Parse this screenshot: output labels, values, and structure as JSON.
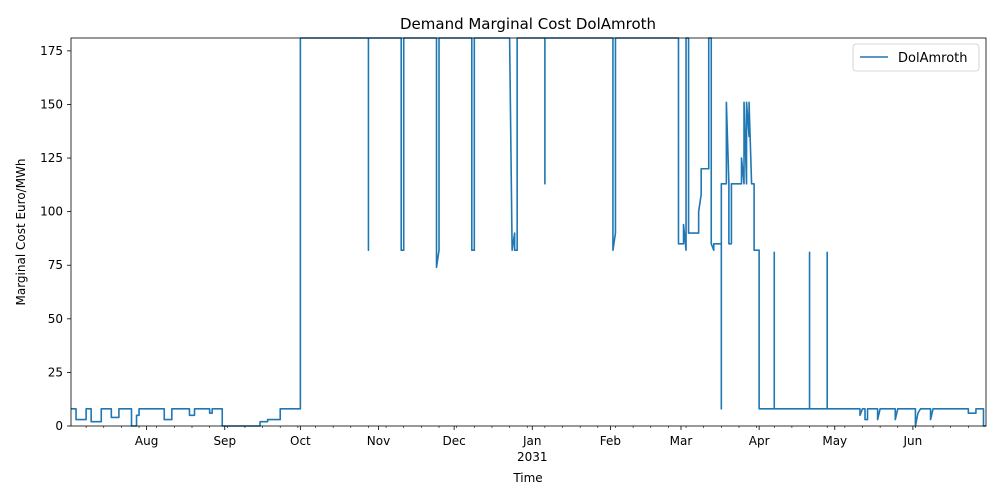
{
  "chart_data": {
    "type": "line",
    "title": "Demand Marginal Cost DolAmroth",
    "xlabel": "Time",
    "ylabel": "Marginal Cost Euro/MWh",
    "ylim": [
      0,
      181
    ],
    "xlim": [
      "2030-07-02",
      "2031-06-30"
    ],
    "grid": false,
    "legend_position": "top-right",
    "y_ticks": [
      0,
      25,
      50,
      75,
      100,
      125,
      150,
      175
    ],
    "x_ticks": [
      {
        "date": "2030-08-01",
        "label": "Aug"
      },
      {
        "date": "2030-09-01",
        "label": "Sep"
      },
      {
        "date": "2030-10-01",
        "label": "Oct"
      },
      {
        "date": "2030-11-01",
        "label": "Nov"
      },
      {
        "date": "2030-12-01",
        "label": "Dec"
      },
      {
        "date": "2031-01-01",
        "label": "Jan"
      },
      {
        "date": "2031-02-01",
        "label": "Feb"
      },
      {
        "date": "2031-03-01",
        "label": "Mar"
      },
      {
        "date": "2031-04-01",
        "label": "Apr"
      },
      {
        "date": "2031-05-01",
        "label": "May"
      },
      {
        "date": "2031-06-01",
        "label": "Jun"
      }
    ],
    "x_year_label": {
      "date": "2031-01-01",
      "label": "2031"
    },
    "series": [
      {
        "name": "DolAmroth",
        "color": "#1f77b4",
        "points": [
          [
            "2030-07-02",
            8
          ],
          [
            "2030-07-04",
            8
          ],
          [
            "2030-07-04",
            3
          ],
          [
            "2030-07-08",
            3
          ],
          [
            "2030-07-08",
            8
          ],
          [
            "2030-07-10",
            8
          ],
          [
            "2030-07-10",
            2
          ],
          [
            "2030-07-14",
            2
          ],
          [
            "2030-07-14",
            8
          ],
          [
            "2030-07-18",
            8
          ],
          [
            "2030-07-18",
            4
          ],
          [
            "2030-07-21",
            4
          ],
          [
            "2030-07-21",
            8
          ],
          [
            "2030-07-26",
            8
          ],
          [
            "2030-07-26",
            0
          ],
          [
            "2030-07-28",
            0
          ],
          [
            "2030-07-28",
            5
          ],
          [
            "2030-07-29",
            5
          ],
          [
            "2030-07-29",
            8
          ],
          [
            "2030-08-08",
            8
          ],
          [
            "2030-08-08",
            3
          ],
          [
            "2030-08-11",
            3
          ],
          [
            "2030-08-11",
            8
          ],
          [
            "2030-08-18",
            8
          ],
          [
            "2030-08-18",
            5
          ],
          [
            "2030-08-20",
            5
          ],
          [
            "2030-08-20",
            8
          ],
          [
            "2030-08-26",
            8
          ],
          [
            "2030-08-26",
            6
          ],
          [
            "2030-08-27",
            6
          ],
          [
            "2030-08-27",
            8
          ],
          [
            "2030-08-31",
            8
          ],
          [
            "2030-08-31",
            0
          ],
          [
            "2030-09-15",
            0
          ],
          [
            "2030-09-15",
            2
          ],
          [
            "2030-09-18",
            2
          ],
          [
            "2030-09-18",
            3
          ],
          [
            "2030-09-23",
            3
          ],
          [
            "2030-09-23",
            8
          ],
          [
            "2030-10-01",
            8
          ],
          [
            "2030-10-01",
            181
          ],
          [
            "2030-10-28",
            181
          ],
          [
            "2030-10-28",
            82
          ],
          [
            "2030-10-28",
            181
          ],
          [
            "2030-11-10",
            181
          ],
          [
            "2030-11-10",
            82
          ],
          [
            "2030-11-11",
            82
          ],
          [
            "2030-11-11",
            181
          ],
          [
            "2030-11-24",
            181
          ],
          [
            "2030-11-24",
            74
          ],
          [
            "2030-11-25",
            82
          ],
          [
            "2030-11-25",
            181
          ],
          [
            "2030-12-08",
            181
          ],
          [
            "2030-12-08",
            82
          ],
          [
            "2030-12-09",
            82
          ],
          [
            "2030-12-09",
            181
          ],
          [
            "2030-12-23",
            181
          ],
          [
            "2030-12-24",
            82
          ],
          [
            "2030-12-25",
            90
          ],
          [
            "2030-12-25",
            82
          ],
          [
            "2030-12-26",
            82
          ],
          [
            "2030-12-26",
            181
          ],
          [
            "2031-01-06",
            181
          ],
          [
            "2031-01-06",
            113
          ],
          [
            "2031-01-06",
            181
          ],
          [
            "2031-02-02",
            181
          ],
          [
            "2031-02-02",
            82
          ],
          [
            "2031-02-03",
            90
          ],
          [
            "2031-02-03",
            181
          ],
          [
            "2031-02-28",
            181
          ],
          [
            "2031-02-28",
            85
          ],
          [
            "2031-03-02",
            85
          ],
          [
            "2031-03-02",
            94
          ],
          [
            "2031-03-03",
            82
          ],
          [
            "2031-03-03",
            181
          ],
          [
            "2031-03-04",
            181
          ],
          [
            "2031-03-04",
            90
          ],
          [
            "2031-03-08",
            90
          ],
          [
            "2031-03-08",
            100
          ],
          [
            "2031-03-09",
            108
          ],
          [
            "2031-03-09",
            120
          ],
          [
            "2031-03-12",
            120
          ],
          [
            "2031-03-12",
            181
          ],
          [
            "2031-03-13",
            181
          ],
          [
            "2031-03-13",
            85
          ],
          [
            "2031-03-14",
            82
          ],
          [
            "2031-03-14",
            85
          ],
          [
            "2031-03-17",
            85
          ],
          [
            "2031-03-17",
            8
          ],
          [
            "2031-03-17",
            113
          ],
          [
            "2031-03-19",
            113
          ],
          [
            "2031-03-19",
            151
          ],
          [
            "2031-03-20",
            113
          ],
          [
            "2031-03-20",
            85
          ],
          [
            "2031-03-21",
            85
          ],
          [
            "2031-03-21",
            113
          ],
          [
            "2031-03-25",
            113
          ],
          [
            "2031-03-25",
            125
          ],
          [
            "2031-03-26",
            113
          ],
          [
            "2031-03-26",
            151
          ],
          [
            "2031-03-27",
            113
          ],
          [
            "2031-03-27",
            151
          ],
          [
            "2031-03-28",
            135
          ],
          [
            "2031-03-28",
            151
          ],
          [
            "2031-03-29",
            113
          ],
          [
            "2031-03-30",
            113
          ],
          [
            "2031-03-30",
            82
          ],
          [
            "2031-04-01",
            82
          ],
          [
            "2031-04-01",
            8
          ],
          [
            "2031-04-07",
            8
          ],
          [
            "2031-04-07",
            81
          ],
          [
            "2031-04-07",
            8
          ],
          [
            "2031-04-21",
            8
          ],
          [
            "2031-04-21",
            81
          ],
          [
            "2031-04-21",
            8
          ],
          [
            "2031-04-28",
            8
          ],
          [
            "2031-04-28",
            81
          ],
          [
            "2031-04-28",
            8
          ],
          [
            "2031-05-11",
            8
          ],
          [
            "2031-05-11",
            5
          ],
          [
            "2031-05-12",
            8
          ],
          [
            "2031-05-13",
            8
          ],
          [
            "2031-05-13",
            3
          ],
          [
            "2031-05-14",
            3
          ],
          [
            "2031-05-14",
            8
          ],
          [
            "2031-05-18",
            8
          ],
          [
            "2031-05-18",
            3
          ],
          [
            "2031-05-19",
            8
          ],
          [
            "2031-05-25",
            8
          ],
          [
            "2031-05-25",
            3
          ],
          [
            "2031-05-26",
            8
          ],
          [
            "2031-06-02",
            8
          ],
          [
            "2031-06-02",
            0
          ],
          [
            "2031-06-03",
            6
          ],
          [
            "2031-06-04",
            8
          ],
          [
            "2031-06-08",
            8
          ],
          [
            "2031-06-08",
            3
          ],
          [
            "2031-06-09",
            8
          ],
          [
            "2031-06-23",
            8
          ],
          [
            "2031-06-23",
            6
          ],
          [
            "2031-06-26",
            6
          ],
          [
            "2031-06-26",
            8
          ],
          [
            "2031-06-29",
            8
          ],
          [
            "2031-06-29",
            0
          ],
          [
            "2031-06-30",
            0
          ]
        ]
      }
    ]
  }
}
